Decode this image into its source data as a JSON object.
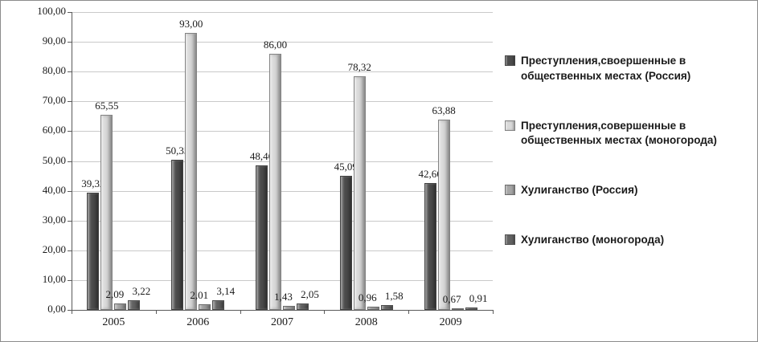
{
  "chart_data": {
    "type": "bar",
    "title": "",
    "xlabel": "",
    "ylabel": "",
    "categories": [
      "2005",
      "2006",
      "2007",
      "2008",
      "2009"
    ],
    "series": [
      {
        "name": "Преступления,своершенные в общественных местах (Россия)",
        "color": "#4d4d4d",
        "values": [
          39.32,
          50.35,
          48.46,
          45.09,
          42.66
        ]
      },
      {
        "name": "Преступления,совершенные в общественных местах (моногорода)",
        "color": "#d9d9d9",
        "values": [
          65.55,
          93.0,
          86.0,
          78.32,
          63.88
        ]
      },
      {
        "name": "Хулиганство (Россия)",
        "color": "#a6a6a6",
        "values": [
          2.09,
          2.01,
          1.43,
          0.96,
          0.67
        ]
      },
      {
        "name": "Хулиганство (моногорода)",
        "color": "#636363",
        "values": [
          3.22,
          3.14,
          2.05,
          1.58,
          0.91
        ]
      }
    ],
    "ylim": [
      0,
      100
    ],
    "ytick_step": 10,
    "value_format": "decimal-comma-2",
    "grid": true,
    "legend_position": "right",
    "axis_color": "#5a5a5a",
    "gridline_color": "#c9c9c9"
  }
}
